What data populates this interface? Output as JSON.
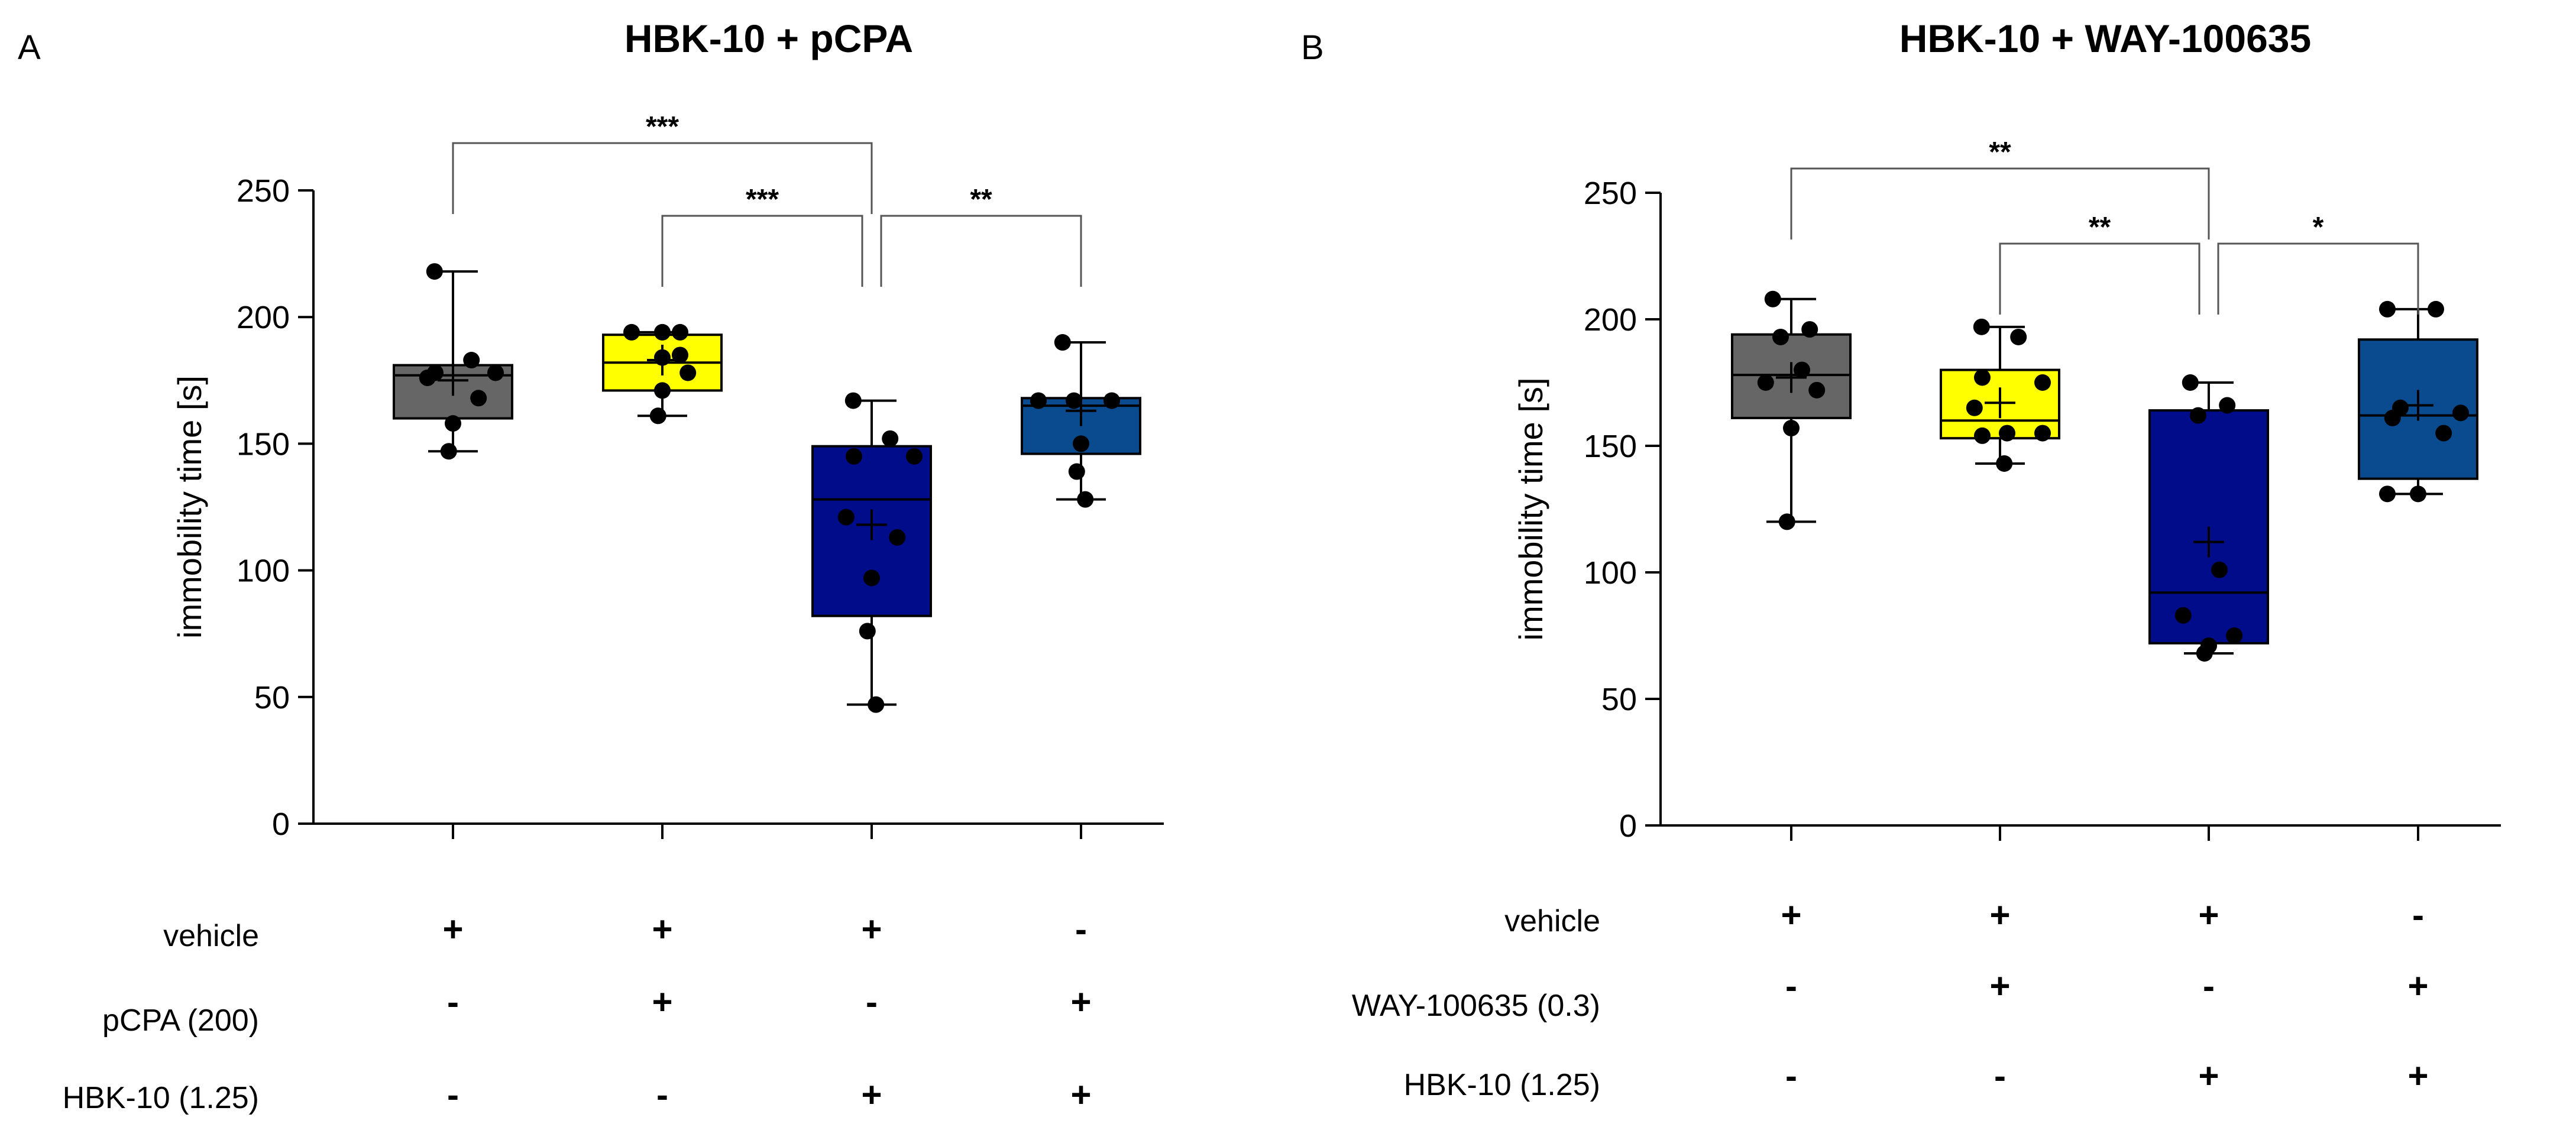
{
  "chart_data": [
    {
      "type": "box",
      "panel_label": "A",
      "title": "HBK-10 + pCPA",
      "ylabel": "immobility time [s]",
      "ylim": [
        0,
        250
      ],
      "yticks": [
        0,
        50,
        100,
        150,
        200,
        250
      ],
      "groups": [
        {
          "color": "#666666",
          "min": 147,
          "q1": 160,
          "median": 177,
          "q3": 181,
          "max": 218,
          "mean": 175,
          "points": [
            218,
            183,
            178,
            178,
            176,
            168,
            158,
            147
          ]
        },
        {
          "color": "#FFFF00",
          "min": 161,
          "q1": 171,
          "median": 182,
          "q3": 193,
          "max": 194,
          "mean": 183,
          "points": [
            194,
            194,
            194,
            185,
            184,
            178,
            171,
            161
          ]
        },
        {
          "color": "#000C8A",
          "min": 47,
          "q1": 82,
          "median": 128,
          "q3": 149,
          "max": 167,
          "mean": 118,
          "points": [
            167,
            152,
            145,
            145,
            121,
            113,
            97,
            76,
            47
          ]
        },
        {
          "color": "#0A4A8E",
          "min": 128,
          "q1": 146,
          "median": 165,
          "q3": 168,
          "max": 190,
          "mean": 163,
          "points": [
            190,
            167,
            167,
            167,
            167,
            167,
            150,
            139,
            128
          ]
        }
      ],
      "significance": [
        {
          "from": 0,
          "to": 2,
          "label": "***"
        },
        {
          "from": 1,
          "to": 2,
          "label": "***"
        },
        {
          "from": 2,
          "to": 3,
          "label": "**"
        }
      ],
      "design": {
        "rows": [
          "vehicle",
          "pCPA (200)",
          "HBK-10 (1.25)"
        ],
        "signs": [
          [
            "+",
            "+",
            "+",
            "-"
          ],
          [
            "-",
            "+",
            "-",
            "+"
          ],
          [
            "-",
            "-",
            "+",
            "+"
          ]
        ]
      }
    },
    {
      "type": "box",
      "panel_label": "B",
      "title": "HBK-10 + WAY-100635",
      "ylabel": "immobility time [s]",
      "ylim": [
        0,
        250
      ],
      "yticks": [
        0,
        50,
        100,
        150,
        200,
        250
      ],
      "groups": [
        {
          "color": "#666666",
          "min": 120,
          "q1": 161,
          "median": 178,
          "q3": 194,
          "max": 208,
          "mean": 177,
          "points": [
            208,
            196,
            193,
            180,
            175,
            172,
            157,
            120
          ]
        },
        {
          "color": "#FFFF00",
          "min": 143,
          "q1": 153,
          "median": 160,
          "q3": 180,
          "max": 197,
          "mean": 167,
          "points": [
            197,
            193,
            177,
            175,
            165,
            155,
            155,
            154,
            143
          ]
        },
        {
          "color": "#000C8A",
          "min": 68,
          "q1": 72,
          "median": 92,
          "q3": 164,
          "max": 175,
          "mean": 112,
          "points": [
            175,
            166,
            162,
            101,
            83,
            75,
            71,
            68
          ]
        },
        {
          "color": "#0A4A8E",
          "min": 131,
          "q1": 137,
          "median": 162,
          "q3": 192,
          "max": 204,
          "mean": 166,
          "points": [
            204,
            204,
            165,
            163,
            161,
            155,
            131,
            131
          ]
        }
      ],
      "significance": [
        {
          "from": 0,
          "to": 2,
          "label": "**"
        },
        {
          "from": 1,
          "to": 2,
          "label": "**"
        },
        {
          "from": 2,
          "to": 3,
          "label": "*"
        }
      ],
      "design": {
        "rows": [
          "vehicle",
          "WAY-100635 (0.3)",
          "HBK-10 (1.25)"
        ],
        "signs": [
          [
            "+",
            "+",
            "+",
            "-"
          ],
          [
            "-",
            "+",
            "-",
            "+"
          ],
          [
            "-",
            "-",
            "+",
            "+"
          ]
        ]
      }
    }
  ]
}
